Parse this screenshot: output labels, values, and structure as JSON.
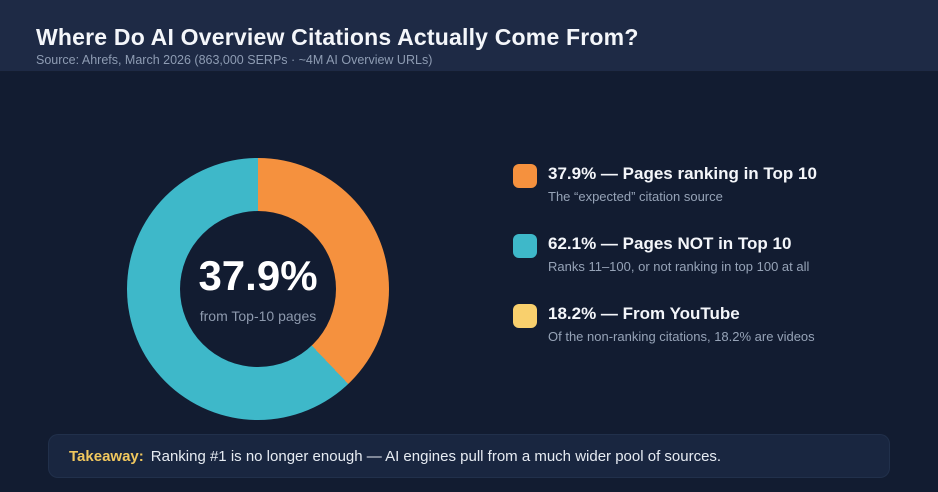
{
  "header": {
    "title": "Where Do AI Overview Citations Actually Come From?",
    "source": "Source: Ahrefs, March 2026 (863,000 SERPs · ~4M AI Overview URLs)"
  },
  "chart_data": {
    "type": "pie",
    "donut": true,
    "title": "Where Do AI Overview Citations Actually Come From?",
    "start_angle_deg": 0,
    "direction": "clockwise",
    "slices": [
      {
        "label": "Pages ranking in Top 10",
        "value": 37.9,
        "color": "#f5913e"
      },
      {
        "label": "Pages NOT in Top 10",
        "value": 62.1,
        "color": "#3eb8c9"
      }
    ],
    "center_label": {
      "value": "37.9%",
      "sublabel": "from Top-10 pages"
    },
    "legend_position": "right"
  },
  "legend": {
    "items": [
      {
        "title": "37.9% — Pages ranking in Top 10",
        "subtitle": "The “expected” citation source",
        "color": "#f5913e"
      },
      {
        "title": "62.1% — Pages NOT in Top 10",
        "subtitle": "Ranks 11–100, or not ranking in top 100 at all",
        "color": "#3eb8c9"
      },
      {
        "title": "18.2% — From YouTube",
        "subtitle": "Of the non-ranking citations, 18.2% are videos",
        "color": "#f9d06d"
      }
    ]
  },
  "takeaway": {
    "label": "Takeaway:",
    "text": "Ranking #1 is no longer enough — AI engines pull from a much wider pool of sources."
  }
}
